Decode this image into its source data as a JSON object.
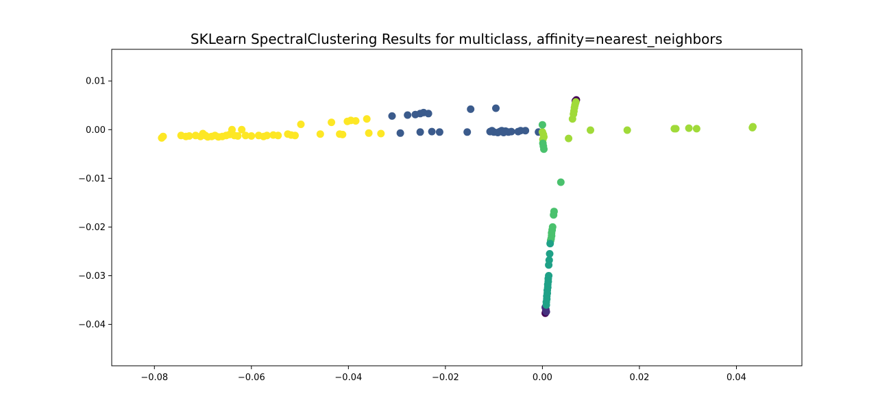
{
  "chart_data": {
    "type": "scatter",
    "title": "SKLearn SpectralClustering Results for multiclass, affinity=nearest_neighbors",
    "xlabel": "",
    "ylabel": "",
    "xlim": [
      -0.0888,
      0.0535
    ],
    "ylim": [
      -0.0485,
      0.0165
    ],
    "x_ticks": [
      -0.08,
      -0.06,
      -0.04,
      -0.02,
      0.0,
      0.02,
      0.04
    ],
    "x_tick_labels": [
      "−0.08",
      "−0.06",
      "−0.04",
      "−0.02",
      "0.00",
      "0.02",
      "0.04"
    ],
    "y_ticks": [
      0.01,
      0.0,
      -0.01,
      -0.02,
      -0.03,
      -0.04
    ],
    "y_tick_labels": [
      "0.01",
      "0.00",
      "−0.01",
      "−0.02",
      "−0.03",
      "−0.04"
    ],
    "grid": false,
    "legend": "none",
    "series": [
      {
        "color": "#fde725",
        "points": [
          [
            -0.0785,
            -0.0017
          ],
          [
            -0.0782,
            -0.0014
          ],
          [
            -0.0745,
            -0.0012
          ],
          [
            -0.0735,
            -0.0014
          ],
          [
            -0.0728,
            -0.0013
          ],
          [
            -0.0715,
            -0.0012
          ],
          [
            -0.0705,
            -0.0014
          ],
          [
            -0.07,
            -0.0008
          ],
          [
            -0.0695,
            -0.0012
          ],
          [
            -0.069,
            -0.0015
          ],
          [
            -0.0682,
            -0.0014
          ],
          [
            -0.0675,
            -0.0012
          ],
          [
            -0.0668,
            -0.0015
          ],
          [
            -0.066,
            -0.0014
          ],
          [
            -0.0652,
            -0.0012
          ],
          [
            -0.0645,
            -0.001
          ],
          [
            -0.064,
            0.0
          ],
          [
            -0.0635,
            -0.0012
          ],
          [
            -0.0628,
            -0.0013
          ],
          [
            -0.062,
            0.0
          ],
          [
            -0.0612,
            -0.0012
          ],
          [
            -0.06,
            -0.0013
          ],
          [
            -0.0585,
            -0.0012
          ],
          [
            -0.0575,
            -0.0014
          ],
          [
            -0.0568,
            -0.0012
          ],
          [
            -0.0555,
            -0.0011
          ],
          [
            -0.0545,
            -0.0012
          ],
          [
            -0.0525,
            -0.0009
          ],
          [
            -0.0518,
            -0.0011
          ],
          [
            -0.051,
            -0.0012
          ],
          [
            -0.0498,
            0.0011
          ],
          [
            -0.0458,
            -0.0009
          ],
          [
            -0.0435,
            0.0015
          ],
          [
            -0.0418,
            -0.0009
          ],
          [
            -0.0412,
            -0.001
          ],
          [
            -0.0402,
            0.0017
          ],
          [
            -0.0395,
            0.0019
          ],
          [
            -0.0385,
            0.0018
          ],
          [
            -0.0362,
            0.0022
          ],
          [
            -0.0358,
            -0.0007
          ],
          [
            -0.0333,
            -0.0008
          ]
        ]
      },
      {
        "color": "#3b5b8c",
        "points": [
          [
            -0.031,
            0.0028
          ],
          [
            -0.0293,
            -0.0007
          ],
          [
            -0.0278,
            0.003
          ],
          [
            -0.0262,
            0.0031
          ],
          [
            -0.0252,
            0.0033
          ],
          [
            -0.0245,
            0.0035
          ],
          [
            -0.0235,
            0.0033
          ],
          [
            -0.0252,
            -0.0005
          ],
          [
            -0.0228,
            -0.0004
          ],
          [
            -0.0212,
            -0.0005
          ],
          [
            -0.0155,
            -0.0005
          ],
          [
            -0.0148,
            0.0042
          ],
          [
            -0.0108,
            -0.0004
          ],
          [
            -0.0104,
            -0.0002
          ],
          [
            -0.01,
            -0.0005
          ],
          [
            -0.0096,
            0.0044
          ],
          [
            -0.0092,
            -0.0006
          ],
          [
            -0.0088,
            -0.0004
          ],
          [
            -0.0084,
            -0.0002
          ],
          [
            -0.008,
            -0.0006
          ],
          [
            -0.0076,
            -0.0003
          ],
          [
            -0.007,
            -0.0005
          ],
          [
            -0.0064,
            -0.0004
          ],
          [
            -0.005,
            -0.0004
          ],
          [
            -0.0045,
            -0.0002
          ],
          [
            -0.0035,
            -0.0002
          ],
          [
            -0.0008,
            -0.0005
          ]
        ]
      },
      {
        "color": "#440154",
        "points": [
          [
            0.0068,
            0.0059
          ],
          [
            0.007,
            0.0061
          ],
          [
            0.0007,
            -0.0372
          ],
          [
            0.0006,
            -0.0377
          ]
        ]
      },
      {
        "color": "#46307e",
        "points": [
          [
            0.0006,
            -0.0365
          ],
          [
            0.0007,
            -0.0369
          ],
          [
            0.0008,
            -0.0374
          ]
        ]
      },
      {
        "color": "#a0da39",
        "points": [
          [
            0.0062,
            0.0022
          ],
          [
            0.0064,
            0.0032
          ],
          [
            0.0065,
            0.0038
          ],
          [
            0.0066,
            0.0045
          ],
          [
            0.0067,
            0.005
          ],
          [
            0.0068,
            0.0054
          ],
          [
            0.0069,
            0.0057
          ],
          [
            0.0054,
            -0.0018
          ],
          [
            0.0099,
            -0.0001
          ],
          [
            0.0175,
            -0.0001
          ],
          [
            0.0272,
            0.0002
          ],
          [
            0.0275,
            0.0002
          ],
          [
            0.0302,
            0.0003
          ],
          [
            0.0318,
            0.0002
          ],
          [
            0.0433,
            0.0004
          ],
          [
            0.0434,
            0.0006
          ],
          [
            0.0,
            -0.0005
          ],
          [
            0.0002,
            -0.001
          ],
          [
            0.0003,
            -0.0015
          ],
          [
            0.0001,
            -0.002
          ]
        ]
      },
      {
        "color": "#4ac16d",
        "points": [
          [
            0.0,
            0.001
          ],
          [
            0.0001,
            -0.0028
          ],
          [
            0.0002,
            -0.0034
          ],
          [
            0.0003,
            -0.004
          ],
          [
            0.0038,
            -0.0108
          ],
          [
            0.0024,
            -0.0168
          ],
          [
            0.0023,
            -0.0175
          ],
          [
            0.0021,
            -0.02
          ],
          [
            0.002,
            -0.0206
          ],
          [
            0.0019,
            -0.0212
          ],
          [
            0.0019,
            -0.0218
          ],
          [
            0.0018,
            -0.0224
          ],
          [
            0.0017,
            -0.0228
          ]
        ]
      },
      {
        "color": "#1fa187",
        "points": [
          [
            0.0016,
            -0.0234
          ],
          [
            0.0015,
            -0.0255
          ],
          [
            0.0014,
            -0.0268
          ],
          [
            0.0013,
            -0.0278
          ],
          [
            0.0013,
            -0.03
          ],
          [
            0.0012,
            -0.0306
          ],
          [
            0.0012,
            -0.0312
          ],
          [
            0.0011,
            -0.0318
          ],
          [
            0.0011,
            -0.0324
          ],
          [
            0.001,
            -0.033
          ],
          [
            0.001,
            -0.0336
          ],
          [
            0.0009,
            -0.0342
          ],
          [
            0.0009,
            -0.0348
          ],
          [
            0.0008,
            -0.0354
          ],
          [
            0.0008,
            -0.036
          ]
        ]
      }
    ]
  }
}
